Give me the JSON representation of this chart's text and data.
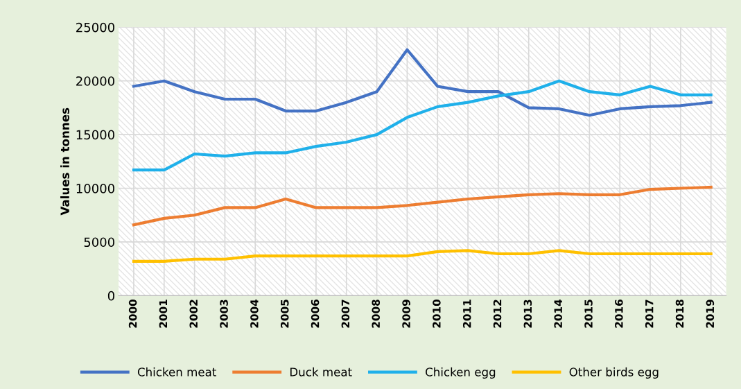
{
  "chart_data": {
    "type": "line",
    "ylabel": "Values in tonnes",
    "categories": [
      "2000",
      "2001",
      "2002",
      "2003",
      "2004",
      "2005",
      "2006",
      "2007",
      "2008",
      "2009",
      "2010",
      "2011",
      "2012",
      "2013",
      "2014",
      "2015",
      "2016",
      "2017",
      "2018",
      "2019"
    ],
    "series": [
      {
        "name": "Chicken meat",
        "color": "#4472c4",
        "values": [
          19500,
          20000,
          19000,
          18300,
          18300,
          17200,
          17200,
          18000,
          19000,
          22900,
          19500,
          19000,
          19000,
          17500,
          17400,
          16800,
          17400,
          17600,
          17700,
          18000
        ]
      },
      {
        "name": "Duck meat",
        "color": "#ed7d31",
        "values": [
          6600,
          7200,
          7500,
          8200,
          8200,
          9000,
          8200,
          8200,
          8200,
          8400,
          8700,
          9000,
          9200,
          9400,
          9500,
          9400,
          9400,
          9900,
          10000,
          10100
        ]
      },
      {
        "name": "Chicken egg",
        "color": "#1fb0ea",
        "values": [
          11700,
          11700,
          13200,
          13000,
          13300,
          13300,
          13900,
          14300,
          15000,
          16600,
          17600,
          18000,
          18600,
          19000,
          20000,
          19000,
          18700,
          19500,
          18700,
          18700
        ]
      },
      {
        "name": "Other birds egg",
        "color": "#ffc000",
        "values": [
          3200,
          3200,
          3400,
          3400,
          3700,
          3700,
          3700,
          3700,
          3700,
          3700,
          4100,
          4200,
          3900,
          3900,
          4200,
          3900,
          3900,
          3900,
          3900,
          3900
        ]
      }
    ],
    "ylim": [
      0,
      25000
    ],
    "yticks": [
      0,
      5000,
      10000,
      15000,
      20000,
      25000
    ],
    "grid": true,
    "legend": "bottom",
    "marker": "none",
    "line_style": "solid"
  }
}
